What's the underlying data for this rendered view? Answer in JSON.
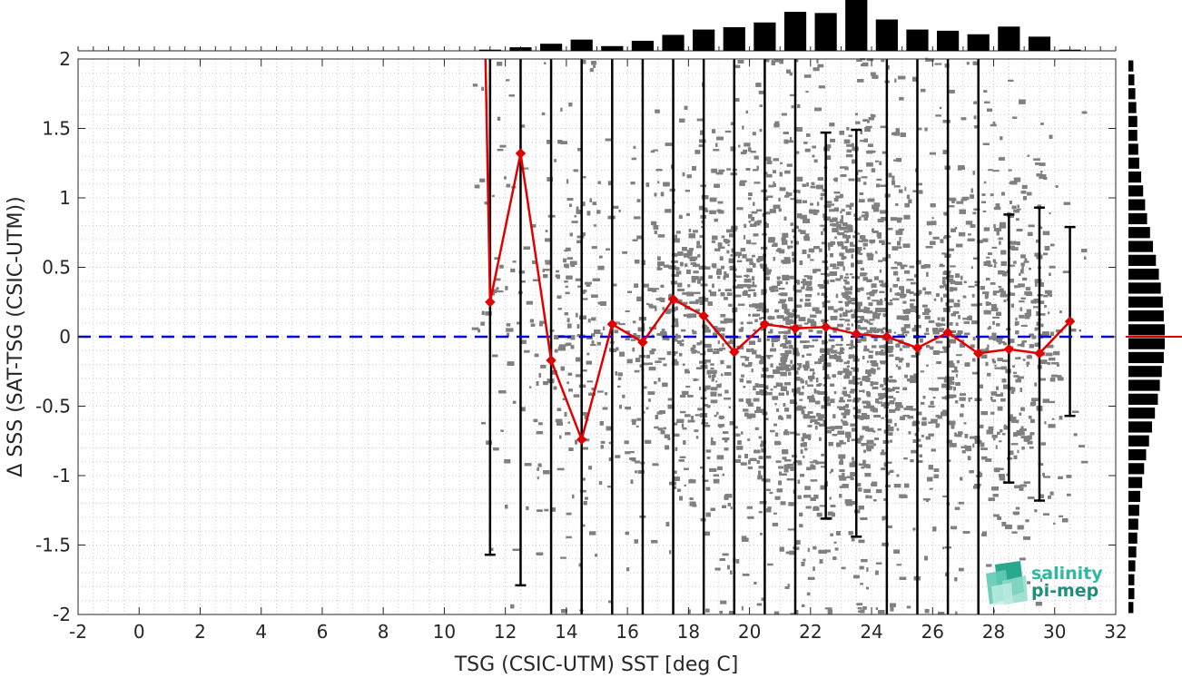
{
  "chart_data": {
    "type": "scatter",
    "xlabel": "TSG (CSIC-UTM) SST [deg C]",
    "ylabel": "Δ SSS (SAT-TSG (CSIC-UTM))",
    "xlim": [
      -2,
      32
    ],
    "ylim": [
      -2,
      2
    ],
    "x_ticks": [
      "-2",
      "0",
      "2",
      "4",
      "6",
      "8",
      "10",
      "12",
      "14",
      "16",
      "18",
      "20",
      "22",
      "24",
      "26",
      "28",
      "30",
      "32"
    ],
    "y_ticks": [
      "2",
      "1.5",
      "1",
      "0.5",
      "0",
      "-0.5",
      "-1",
      "-1.5",
      "-2"
    ],
    "grid": true,
    "reference_line": {
      "y": 0,
      "style": "dashed",
      "color": "#0000dd"
    },
    "mean_series": {
      "color": "#e00000",
      "x": [
        11.5,
        12.5,
        13.5,
        14.5,
        15.5,
        16.5,
        17.5,
        18.5,
        19.5,
        20.5,
        21.5,
        22.5,
        23.5,
        24.5,
        25.5,
        26.5,
        27.5,
        28.5,
        29.5,
        30.5
      ],
      "y": [
        0.25,
        1.32,
        -0.17,
        -0.74,
        0.09,
        -0.04,
        0.27,
        0.15,
        -0.11,
        0.09,
        0.06,
        0.07,
        0.02,
        0.0,
        -0.08,
        0.03,
        -0.12,
        -0.09,
        -0.12,
        0.11
      ],
      "leading_value": {
        "x": 11.35,
        "y": 2.0
      }
    },
    "error_bars": {
      "x": [
        11.5,
        12.5,
        13.5,
        14.5,
        15.5,
        16.5,
        17.5,
        18.5,
        19.5,
        20.5,
        21.5,
        22.5,
        23.5,
        24.5,
        25.5,
        26.5,
        27.5,
        28.5,
        29.5,
        30.5
      ],
      "low": [
        -1.57,
        -1.79,
        -2.0,
        -2.0,
        -2.0,
        -2.0,
        -2.0,
        -2.0,
        -2.0,
        -2.0,
        -2.0,
        -1.31,
        -1.44,
        -2.0,
        -2.0,
        -2.0,
        -2.0,
        -1.05,
        -1.18,
        -0.57
      ],
      "high": [
        2.0,
        2.0,
        2.0,
        2.0,
        2.0,
        2.0,
        2.0,
        2.0,
        2.0,
        2.0,
        2.0,
        1.47,
        1.49,
        2.0,
        2.0,
        2.0,
        2.0,
        0.88,
        0.93,
        0.79
      ],
      "capped": [
        true,
        true,
        false,
        false,
        false,
        false,
        false,
        false,
        false,
        false,
        false,
        true,
        true,
        false,
        false,
        false,
        false,
        true,
        true,
        true
      ]
    },
    "scatter_cloud": {
      "color": "#808080",
      "x_range": [
        10.5,
        31
      ],
      "y_range": [
        -2,
        2
      ],
      "point_count": 9000
    },
    "top_histogram": {
      "x_bins": [
        11.5,
        12.5,
        13.5,
        14.5,
        15.5,
        16.5,
        17.5,
        18.5,
        19.5,
        20.5,
        21.5,
        22.5,
        23.5,
        24.5,
        25.5,
        26.5,
        27.5,
        28.5,
        29.5,
        30.5
      ],
      "counts": [
        2,
        6,
        12,
        19,
        8,
        17,
        27,
        36,
        40,
        48,
        66,
        64,
        86,
        53,
        36,
        34,
        28,
        41,
        24,
        2
      ]
    },
    "right_histogram": {
      "y_bins": [
        1.95,
        1.85,
        1.75,
        1.65,
        1.55,
        1.45,
        1.35,
        1.25,
        1.15,
        1.05,
        0.95,
        0.85,
        0.75,
        0.65,
        0.55,
        0.45,
        0.35,
        0.25,
        0.15,
        0.05,
        -0.05,
        -0.15,
        -0.25,
        -0.35,
        -0.45,
        -0.55,
        -0.65,
        -0.75,
        -0.85,
        -0.95,
        -1.05,
        -1.15,
        -1.25,
        -1.35,
        -1.45,
        -1.55,
        -1.65,
        -1.75,
        -1.85,
        -1.95
      ],
      "counts": [
        5,
        6,
        7,
        8,
        9,
        9,
        10,
        11,
        13,
        15,
        17,
        19,
        22,
        25,
        28,
        31,
        33,
        35,
        36,
        37,
        37,
        36,
        34,
        32,
        30,
        27,
        24,
        21,
        18,
        16,
        14,
        12,
        11,
        10,
        9,
        8,
        7,
        6,
        6,
        5
      ],
      "median_marker": {
        "y": 0.0,
        "color": "#e00000"
      }
    }
  },
  "logo": {
    "line1": "salinity",
    "line2": "pi-mep",
    "color1": "#2fb8a0",
    "color2": "#1f8f7d"
  }
}
